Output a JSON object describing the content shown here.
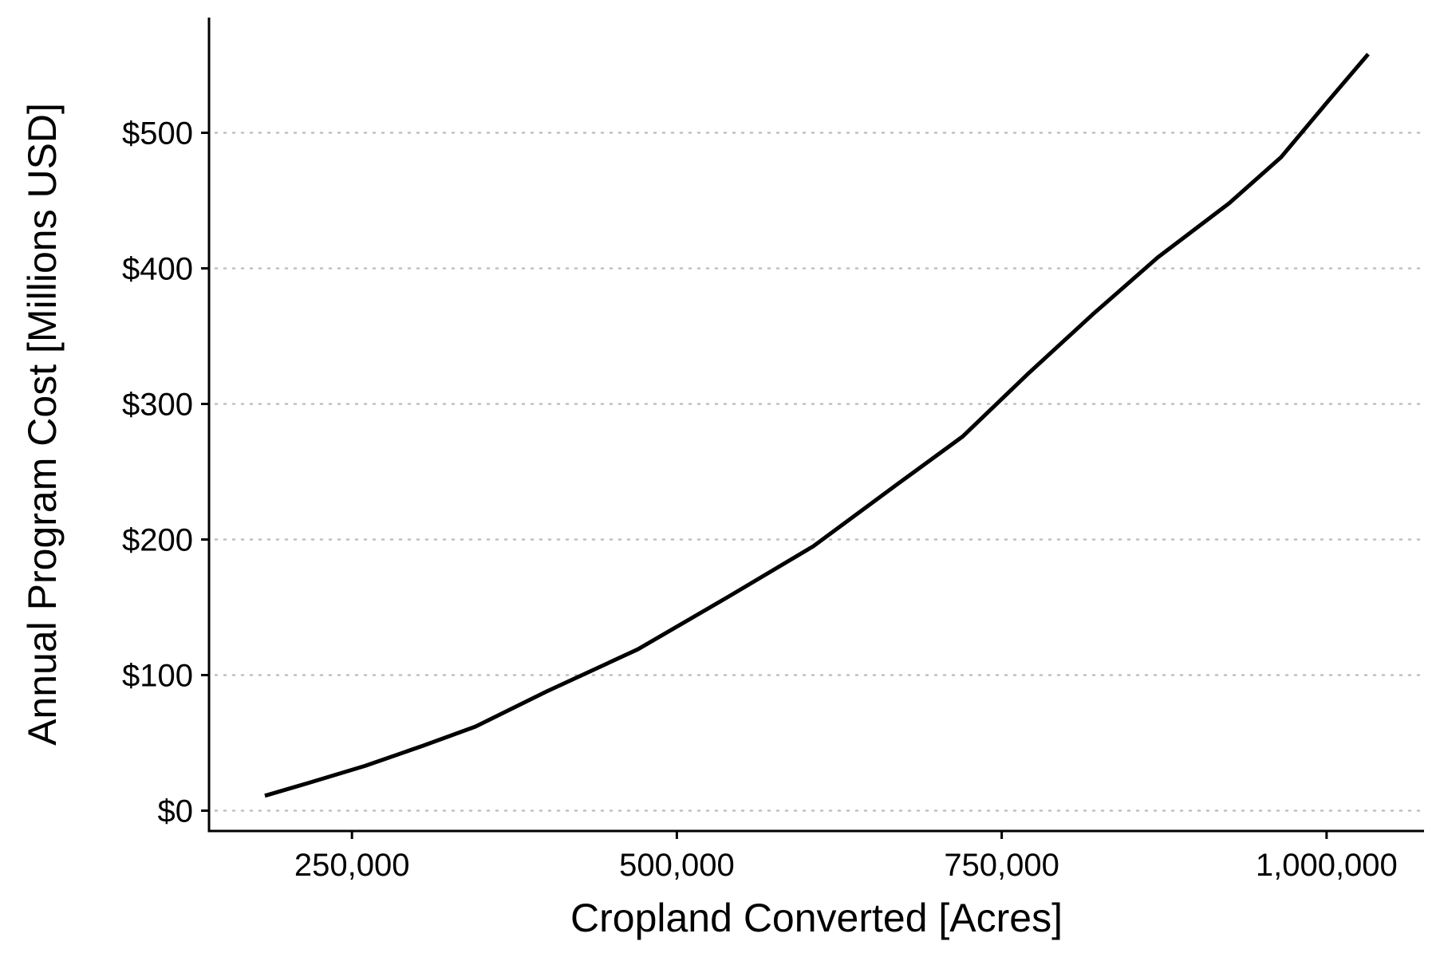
{
  "chart_data": {
    "type": "line",
    "xlabel": "Cropland Converted [Acres]",
    "ylabel": "Annual Program Cost [Millions USD]",
    "xlim": [
      140000,
      1075000
    ],
    "ylim": [
      -15,
      585
    ],
    "x_ticks": [
      250000,
      500000,
      750000,
      1000000
    ],
    "x_tick_labels": [
      "250,000",
      "500,000",
      "750,000",
      "1,000,000"
    ],
    "y_ticks": [
      0,
      100,
      200,
      300,
      400,
      500
    ],
    "y_tick_labels": [
      "$0",
      "$100",
      "$200",
      "$300",
      "$400",
      "$500"
    ],
    "grid": "horizontal dotted",
    "line_color": "#000000",
    "series": [
      {
        "x": [
          183000,
          215000,
          260000,
          305000,
          345000,
          400000,
          470000,
          540000,
          605000,
          670000,
          720000,
          770000,
          820000,
          870000,
          925000,
          965000,
          1000000,
          1032000
        ],
        "values": [
          11,
          20,
          33,
          48,
          62,
          88,
          119,
          158,
          195,
          241,
          276,
          322,
          366,
          408,
          448,
          482,
          522,
          558
        ]
      }
    ]
  }
}
